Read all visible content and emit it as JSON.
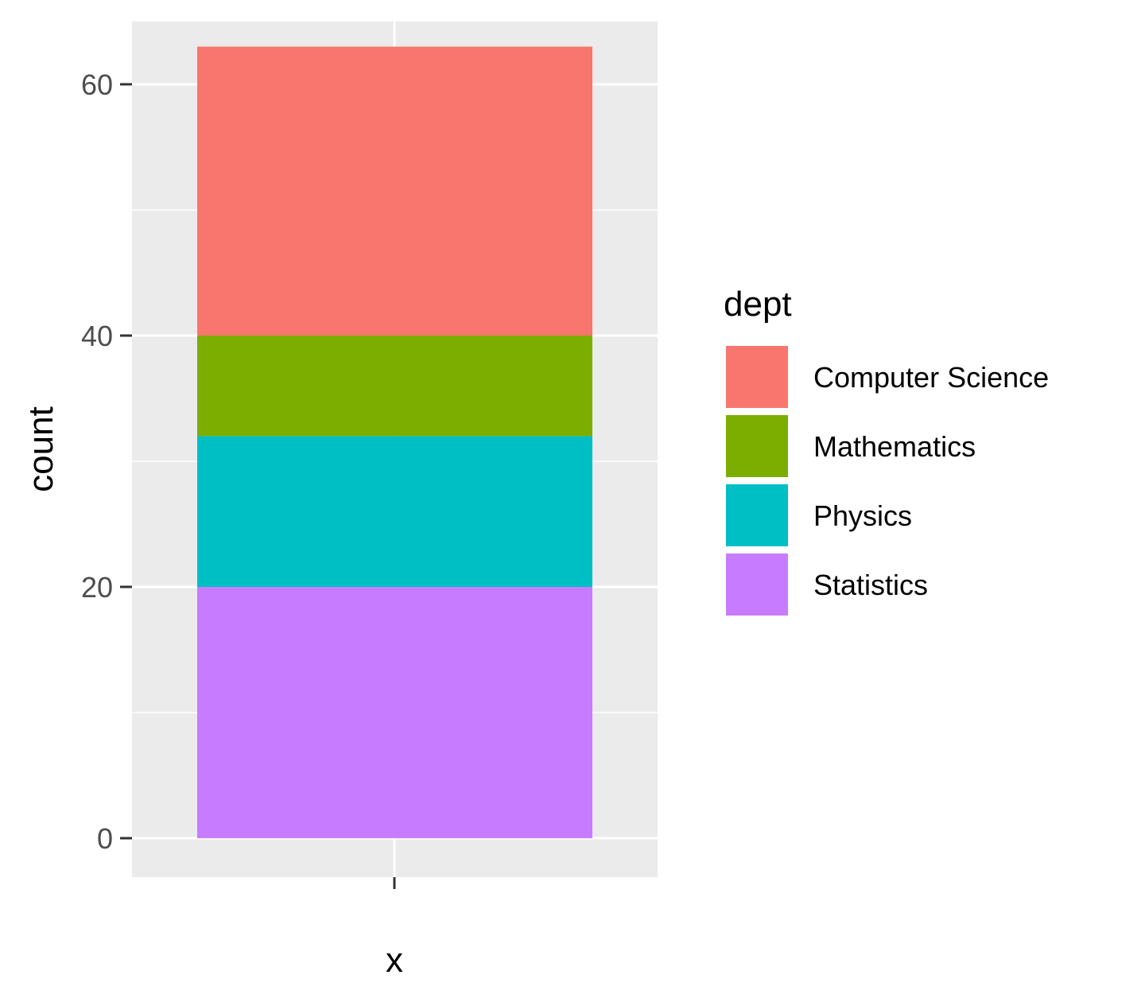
{
  "chart_data": {
    "type": "bar",
    "stacked": true,
    "categories": [
      ""
    ],
    "xlabel": "x",
    "ylabel": "count",
    "ylim": [
      -3.1,
      65
    ],
    "yticks": [
      0,
      20,
      40,
      60
    ],
    "grid": true,
    "legend": {
      "title": "dept",
      "position": "right"
    },
    "series": [
      {
        "name": "Computer Science",
        "values": [
          23
        ],
        "color": "#F8766D"
      },
      {
        "name": "Mathematics",
        "values": [
          8
        ],
        "color": "#7CAE00"
      },
      {
        "name": "Physics",
        "values": [
          12
        ],
        "color": "#00BFC4"
      },
      {
        "name": "Statistics",
        "values": [
          20
        ],
        "color": "#C77CFF"
      }
    ],
    "stack_order_bottom_to_top": [
      "Statistics",
      "Physics",
      "Mathematics",
      "Computer Science"
    ],
    "colors": {
      "panel_background": "#EBEBEB",
      "grid_line": "#FFFFFF",
      "tick_mark": "#333333"
    }
  }
}
